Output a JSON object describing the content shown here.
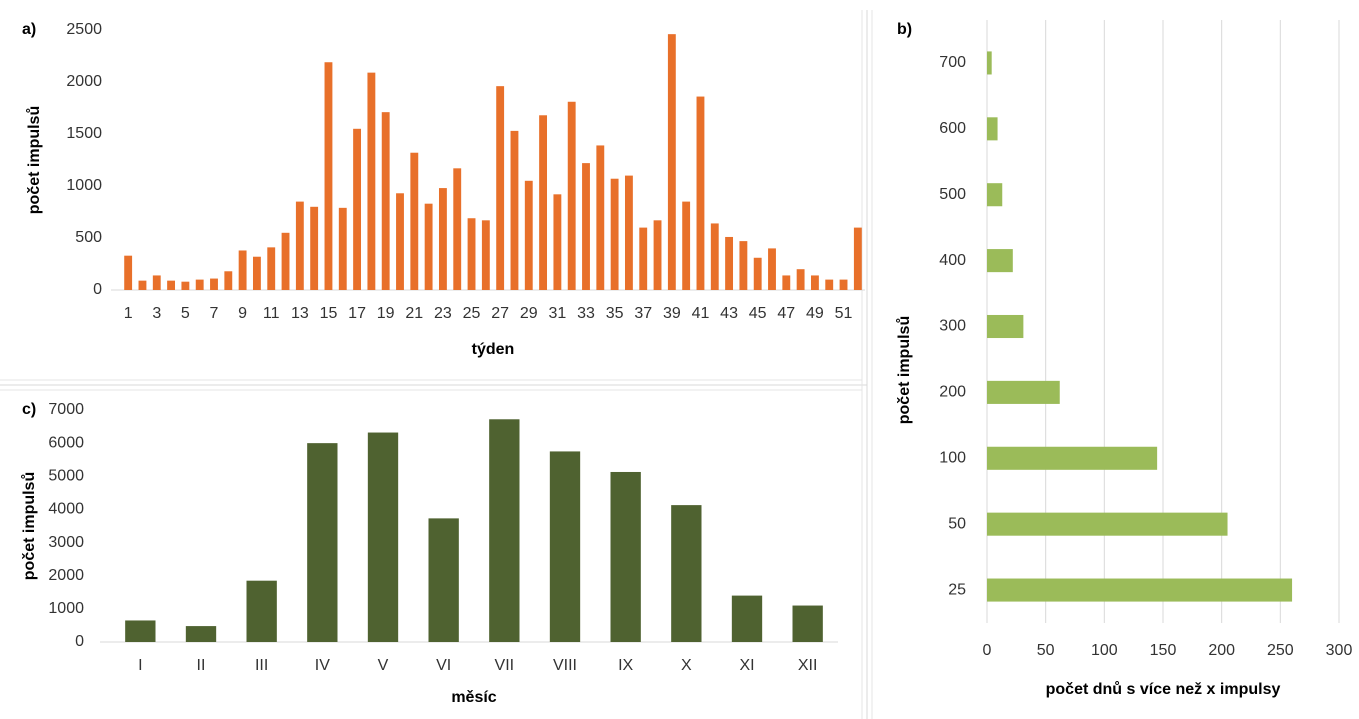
{
  "chart_data": [
    {
      "type": "bar",
      "title": "a)",
      "y_label": "počet impulsů",
      "x_label": "týden",
      "color": "#e8702a",
      "categories": [
        "1",
        null,
        "3",
        null,
        "5",
        null,
        "7",
        null,
        "9",
        null,
        "11",
        null,
        "13",
        null,
        "15",
        null,
        "17",
        null,
        "19",
        null,
        "21",
        null,
        "23",
        null,
        "25",
        null,
        "27",
        null,
        "29",
        null,
        "31",
        null,
        "33",
        null,
        "35",
        null,
        "37",
        null,
        "39",
        null,
        "41",
        null,
        "43",
        null,
        "45",
        null,
        "47",
        null,
        "49",
        null,
        "51",
        null
      ],
      "values": [
        330,
        90,
        140,
        90,
        80,
        100,
        110,
        180,
        380,
        320,
        410,
        550,
        850,
        800,
        2190,
        790,
        1550,
        2090,
        1710,
        930,
        1320,
        830,
        980,
        1170,
        690,
        670,
        1960,
        1530,
        1050,
        1680,
        920,
        1810,
        1220,
        1390,
        1070,
        1100,
        600,
        670,
        2460,
        850,
        1860,
        640,
        510,
        470,
        310,
        400,
        140,
        200,
        140,
        100,
        100,
        600
      ],
      "ylim": [
        0,
        2500
      ],
      "yticks": [
        0,
        500,
        1000,
        1500,
        2000,
        2500
      ]
    },
    {
      "type": "hbar",
      "title": "b)",
      "y_label": "počet impulsů",
      "x_label": "počet dnů s více než x impulsy",
      "color": "#9bbb59",
      "categories": [
        "25",
        "50",
        "100",
        "200",
        "300",
        "400",
        "500",
        "600",
        "700"
      ],
      "values": [
        260,
        205,
        145,
        62,
        31,
        22,
        13,
        9,
        4
      ],
      "xlim": [
        0,
        300
      ],
      "xticks": [
        0,
        50,
        100,
        150,
        200,
        250,
        300
      ],
      "grid": true
    },
    {
      "type": "bar",
      "title": "c)",
      "y_label": "počet impulsů",
      "x_label": "měsíc",
      "color": "#4f6230",
      "categories": [
        "I",
        "II",
        "III",
        "IV",
        "V",
        "VI",
        "VII",
        "VIII",
        "IX",
        "X",
        "XI",
        "XII"
      ],
      "values": [
        650,
        480,
        1850,
        6000,
        6320,
        3730,
        6720,
        5750,
        5130,
        4130,
        1400,
        1100
      ],
      "ylim": [
        0,
        7000
      ],
      "yticks": [
        0,
        1000,
        2000,
        3000,
        4000,
        5000,
        6000,
        7000
      ]
    }
  ]
}
